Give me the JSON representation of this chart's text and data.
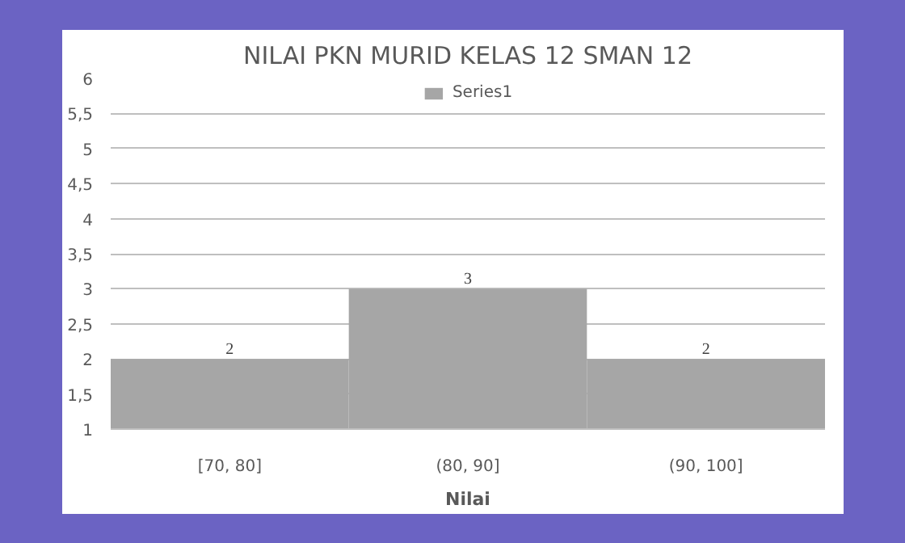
{
  "chart_data": {
    "type": "bar",
    "title": "NILAI PKN MURID KELAS 12 SMAN 12",
    "xlabel": "Nilai",
    "categories": [
      "[70, 80]",
      "(80, 90]",
      "(90, 100]"
    ],
    "series": [
      {
        "name": "Series1",
        "color": "#a6a6a6",
        "values": [
          2,
          3,
          2
        ]
      }
    ],
    "ylim": [
      1,
      6
    ],
    "yticks": [
      1,
      {
        "value": 1.5,
        "label": "1,5"
      },
      2,
      {
        "value": 2.5,
        "label": "2,5"
      },
      3,
      {
        "value": 3.5,
        "label": "3,5"
      },
      4,
      {
        "value": 4.5,
        "label": "4,5"
      },
      5,
      {
        "value": 5.5,
        "label": "5,5"
      },
      6
    ],
    "grid": "y",
    "legend": "top",
    "data_labels": true
  }
}
